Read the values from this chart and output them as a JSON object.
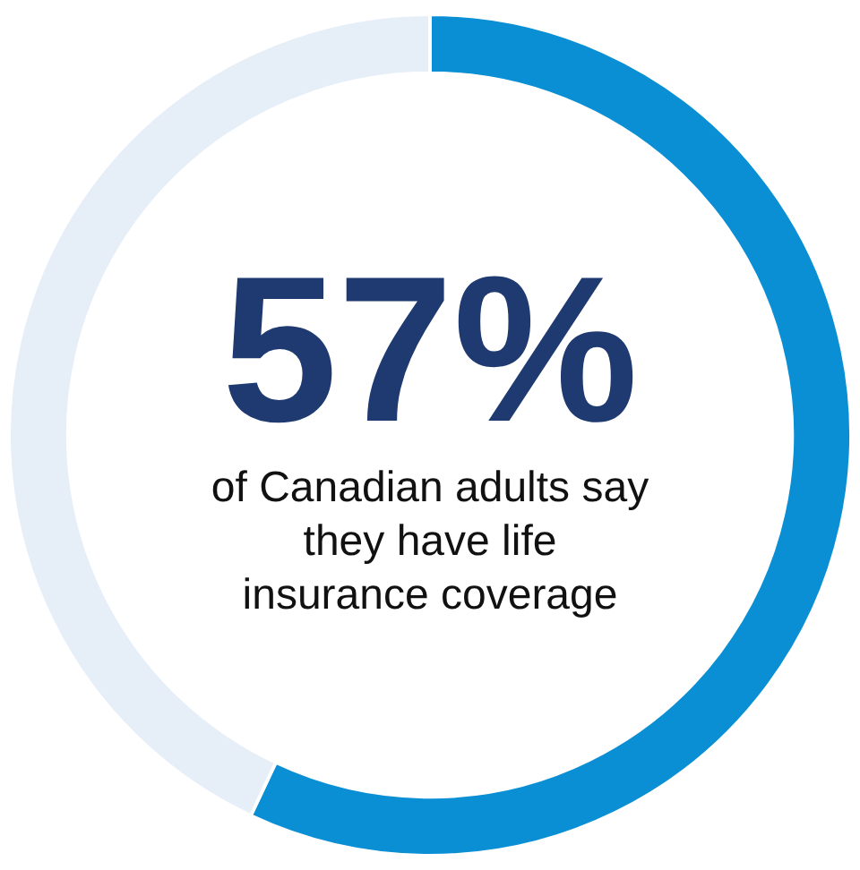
{
  "chart_data": {
    "type": "donut",
    "categories": [
      null,
      null
    ],
    "values": [
      57,
      43
    ],
    "colors": [
      "#0a8fd4",
      "#e6eef8"
    ],
    "value_labels": [
      "57%",
      null
    ],
    "annotations": [
      "of Canadian adults say they have life insurance coverage"
    ],
    "legend": false
  }
}
